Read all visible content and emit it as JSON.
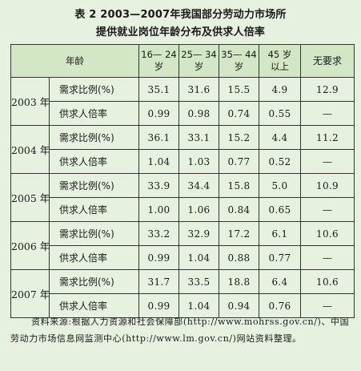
{
  "title": {
    "line1": "表 2   2003—2007年我国部分劳动力市场所",
    "line2": "提供就业岗位年龄分布及供求人倍率"
  },
  "table": {
    "header": {
      "age_label": "年龄",
      "col_16_24": [
        "16— 24",
        "岁"
      ],
      "col_25_34": [
        "25— 34",
        "岁"
      ],
      "col_35_44": [
        "35— 44",
        "岁"
      ],
      "col_45_up": [
        "45 岁",
        "以上"
      ],
      "col_none": "无要求"
    },
    "metric_labels": {
      "demand": "需求比例(%)",
      "ratio": "供求人倍率"
    },
    "rows": [
      {
        "year": "2003 年",
        "demand": [
          "35.1",
          "31.6",
          "15.5",
          "4.9",
          "12.9"
        ],
        "ratio": [
          "0.99",
          "0.98",
          "0.74",
          "0.55",
          "—"
        ]
      },
      {
        "year": "2004 年",
        "demand": [
          "36.1",
          "33.1",
          "15.2",
          "4.4",
          "11.2"
        ],
        "ratio": [
          "1.04",
          "1.03",
          "0.77",
          "0.52",
          "—"
        ]
      },
      {
        "year": "2005 年",
        "demand": [
          "33.9",
          "34.4",
          "15.8",
          "5.0",
          "10.9"
        ],
        "ratio": [
          "1.00",
          "1.06",
          "0.84",
          "0.65",
          "—"
        ]
      },
      {
        "year": "2006 年",
        "demand": [
          "33.2",
          "32.9",
          "17.2",
          "6.1",
          "10.6"
        ],
        "ratio": [
          "0.99",
          "1.04",
          "0.88",
          "0.77",
          "—"
        ]
      },
      {
        "year": "2007 年",
        "demand": [
          "31.7",
          "33.5",
          "18.8",
          "6.4",
          "10.6"
        ],
        "ratio": [
          "0.99",
          "1.04",
          "0.94",
          "0.76",
          "—"
        ]
      }
    ]
  },
  "source_note": "资料来源:根据人力资源和社会保障部(http://www.mohrss.gov.cn/)、中国劳动力市场信息网监测中心(http://www.lm.gov.cn/)网站资料整理。"
}
